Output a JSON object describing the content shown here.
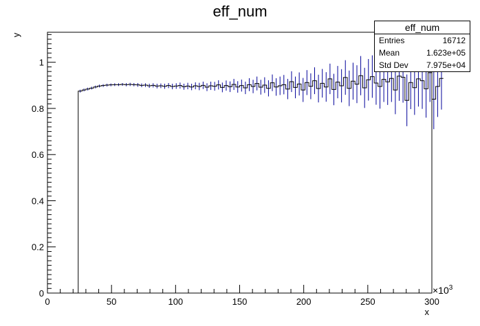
{
  "chart_data": {
    "type": "histogram",
    "title": "eff_num",
    "xlabel": "x",
    "ylabel": "y",
    "x_exponent_label": "×10",
    "x_exponent_power": "3",
    "xlim": [
      0,
      300
    ],
    "ylim": [
      0,
      1.13
    ],
    "x_ticks": [
      0,
      50,
      100,
      150,
      200,
      250,
      300
    ],
    "x_tick_labels": [
      "0",
      "50",
      "100",
      "150",
      "200",
      "250",
      "300"
    ],
    "y_ticks": [
      0,
      0.2,
      0.4,
      0.6,
      0.8,
      1
    ],
    "y_tick_labels": [
      "0",
      "0.2",
      "0.4",
      "0.6",
      "0.8",
      "1"
    ],
    "bin_width": 3,
    "bin_start": 24,
    "bins": [
      [
        0.875,
        0.006
      ],
      [
        0.88,
        0.006
      ],
      [
        0.884,
        0.006
      ],
      [
        0.888,
        0.006
      ],
      [
        0.893,
        0.006
      ],
      [
        0.897,
        0.006
      ],
      [
        0.899,
        0.006
      ],
      [
        0.901,
        0.006
      ],
      [
        0.902,
        0.006
      ],
      [
        0.903,
        0.006
      ],
      [
        0.903,
        0.006
      ],
      [
        0.904,
        0.006
      ],
      [
        0.903,
        0.007
      ],
      [
        0.904,
        0.007
      ],
      [
        0.903,
        0.007
      ],
      [
        0.902,
        0.008
      ],
      [
        0.9,
        0.008
      ],
      [
        0.901,
        0.008
      ],
      [
        0.898,
        0.009
      ],
      [
        0.9,
        0.009
      ],
      [
        0.897,
        0.01
      ],
      [
        0.898,
        0.01
      ],
      [
        0.896,
        0.011
      ],
      [
        0.899,
        0.011
      ],
      [
        0.895,
        0.012
      ],
      [
        0.897,
        0.012
      ],
      [
        0.899,
        0.013
      ],
      [
        0.894,
        0.013
      ],
      [
        0.897,
        0.014
      ],
      [
        0.893,
        0.014
      ],
      [
        0.898,
        0.015
      ],
      [
        0.895,
        0.016
      ],
      [
        0.9,
        0.016
      ],
      [
        0.892,
        0.017
      ],
      [
        0.898,
        0.018
      ],
      [
        0.896,
        0.019
      ],
      [
        0.902,
        0.02
      ],
      [
        0.891,
        0.021
      ],
      [
        0.899,
        0.022
      ],
      [
        0.894,
        0.023
      ],
      [
        0.904,
        0.024
      ],
      [
        0.893,
        0.025
      ],
      [
        0.899,
        0.026
      ],
      [
        0.889,
        0.027
      ],
      [
        0.903,
        0.028
      ],
      [
        0.895,
        0.029
      ],
      [
        0.908,
        0.03
      ],
      [
        0.892,
        0.032
      ],
      [
        0.901,
        0.034
      ],
      [
        0.887,
        0.035
      ],
      [
        0.911,
        0.036
      ],
      [
        0.893,
        0.038
      ],
      [
        0.898,
        0.04
      ],
      [
        0.903,
        0.042
      ],
      [
        0.884,
        0.044
      ],
      [
        0.916,
        0.045
      ],
      [
        0.891,
        0.047
      ],
      [
        0.906,
        0.05
      ],
      [
        0.88,
        0.052
      ],
      [
        0.912,
        0.054
      ],
      [
        0.896,
        0.056
      ],
      [
        0.92,
        0.058
      ],
      [
        0.886,
        0.06
      ],
      [
        0.909,
        0.062
      ],
      [
        0.893,
        0.064
      ],
      [
        0.928,
        0.066
      ],
      [
        0.882,
        0.068
      ],
      [
        0.914,
        0.07
      ],
      [
        0.898,
        0.072
      ],
      [
        0.934,
        0.075
      ],
      [
        0.887,
        0.077
      ],
      [
        0.918,
        0.08
      ],
      [
        0.905,
        0.082
      ],
      [
        0.942,
        0.085
      ],
      [
        0.889,
        0.087
      ],
      [
        0.924,
        0.09
      ],
      [
        0.938,
        0.092
      ],
      [
        0.91,
        0.094
      ],
      [
        0.895,
        0.096
      ],
      [
        0.926,
        0.098
      ],
      [
        0.915,
        0.1
      ],
      [
        0.93,
        0.102
      ],
      [
        0.88,
        0.105
      ],
      [
        0.94,
        0.107
      ],
      [
        0.935,
        0.11
      ],
      [
        0.835,
        0.112
      ],
      [
        0.912,
        0.115
      ],
      [
        0.89,
        0.118
      ],
      [
        0.928,
        0.12
      ],
      [
        0.92,
        0.122
      ],
      [
        0.885,
        0.125
      ],
      [
        0.955,
        0.127
      ],
      [
        0.84,
        0.13
      ],
      [
        0.895,
        0.132
      ],
      [
        0.93,
        0.135
      ]
    ],
    "stats": {
      "name": "eff_num",
      "rows": [
        {
          "label": "Entries",
          "value": "16712"
        },
        {
          "label": "Mean",
          "value": "1.623e+05"
        },
        {
          "label": "Std Dev",
          "value": "7.975e+04"
        }
      ]
    },
    "colors": {
      "histogram_line": "#000000",
      "error_bars": "#000099",
      "frame": "#000000"
    }
  }
}
